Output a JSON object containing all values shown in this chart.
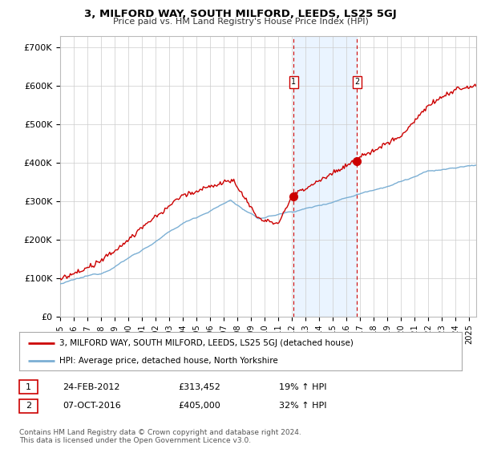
{
  "title": "3, MILFORD WAY, SOUTH MILFORD, LEEDS, LS25 5GJ",
  "subtitle": "Price paid vs. HM Land Registry's House Price Index (HPI)",
  "ylabel_ticks": [
    "£0",
    "£100K",
    "£200K",
    "£300K",
    "£400K",
    "£500K",
    "£600K",
    "£700K"
  ],
  "ytick_values": [
    0,
    100000,
    200000,
    300000,
    400000,
    500000,
    600000,
    700000
  ],
  "ylim": [
    0,
    730000
  ],
  "xlim_start": 1995.0,
  "xlim_end": 2025.5,
  "sale1_date": 2012.12,
  "sale1_value": 313452,
  "sale1_label": "1",
  "sale2_date": 2016.77,
  "sale2_value": 405000,
  "sale2_label": "2",
  "background_color": "#ffffff",
  "plot_bg_color": "#ffffff",
  "grid_color": "#cccccc",
  "hpi_line_color": "#7bafd4",
  "price_line_color": "#cc0000",
  "shade_color": "#ddeeff",
  "legend_line1": "3, MILFORD WAY, SOUTH MILFORD, LEEDS, LS25 5GJ (detached house)",
  "legend_line2": "HPI: Average price, detached house, North Yorkshire",
  "annotation1_label": "24-FEB-2012",
  "annotation1_price": "£313,452",
  "annotation1_hpi": "19% ↑ HPI",
  "annotation2_label": "07-OCT-2016",
  "annotation2_price": "£405,000",
  "annotation2_hpi": "32% ↑ HPI",
  "footnote": "Contains HM Land Registry data © Crown copyright and database right 2024.\nThis data is licensed under the Open Government Licence v3.0."
}
